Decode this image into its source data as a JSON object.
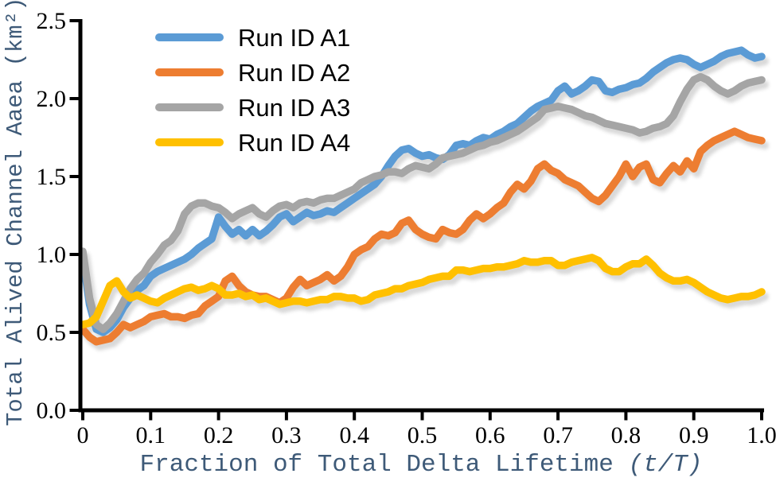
{
  "figure": {
    "background": "#ffffff",
    "axis_color": "#000000",
    "tick_label_color": "#000000",
    "axis_title_color": "#3E5A78",
    "shadow": true
  },
  "chart_data": {
    "type": "line",
    "title": "",
    "xlabel": "Fraction of Total Delta Lifetime (t/T)",
    "xlabel_main": "Fraction of Total Delta Lifetime ",
    "xlabel_var": "(t/T)",
    "ylabel": "Total Alived Channel Aaea (km²)",
    "ylabel_main": "Total Alived Channel Aaea ",
    "ylabel_unit": "(km²)",
    "xlim": [
      0,
      1.0
    ],
    "ylim": [
      0,
      2.5
    ],
    "x_ticks": [
      "0",
      "0.1",
      "0.2",
      "0.3",
      "0.4",
      "0.5",
      "0.6",
      "0.7",
      "0.8",
      "0.9",
      "1.0"
    ],
    "y_ticks": [
      "0.0",
      "0.5",
      "1.0",
      "1.5",
      "2.0",
      "2.5"
    ],
    "grid": false,
    "legend_position": "top-left-inside",
    "x_start": 0,
    "x_step": 0.01,
    "series": [
      {
        "name": "Run ID A1",
        "color": "#5B9BD5",
        "values": [
          0.98,
          0.68,
          0.52,
          0.5,
          0.53,
          0.58,
          0.66,
          0.72,
          0.77,
          0.8,
          0.86,
          0.89,
          0.91,
          0.93,
          0.95,
          0.97,
          1.0,
          1.04,
          1.07,
          1.1,
          1.24,
          1.18,
          1.13,
          1.16,
          1.12,
          1.16,
          1.12,
          1.15,
          1.19,
          1.24,
          1.26,
          1.21,
          1.24,
          1.27,
          1.25,
          1.26,
          1.28,
          1.27,
          1.3,
          1.33,
          1.36,
          1.39,
          1.42,
          1.45,
          1.5,
          1.57,
          1.63,
          1.67,
          1.68,
          1.65,
          1.63,
          1.64,
          1.62,
          1.61,
          1.64,
          1.7,
          1.71,
          1.7,
          1.73,
          1.75,
          1.74,
          1.77,
          1.79,
          1.82,
          1.84,
          1.88,
          1.92,
          1.95,
          1.97,
          1.99,
          2.05,
          2.08,
          2.03,
          2.05,
          2.08,
          2.12,
          2.11,
          2.05,
          2.04,
          2.06,
          2.07,
          2.09,
          2.1,
          2.13,
          2.17,
          2.2,
          2.23,
          2.25,
          2.26,
          2.25,
          2.22,
          2.2,
          2.22,
          2.24,
          2.27,
          2.29,
          2.3,
          2.31,
          2.28,
          2.26,
          2.27
        ]
      },
      {
        "name": "Run ID A2",
        "color": "#ED7D31",
        "values": [
          0.52,
          0.47,
          0.44,
          0.45,
          0.46,
          0.5,
          0.55,
          0.53,
          0.55,
          0.57,
          0.6,
          0.61,
          0.62,
          0.6,
          0.6,
          0.59,
          0.61,
          0.62,
          0.67,
          0.7,
          0.73,
          0.83,
          0.86,
          0.8,
          0.76,
          0.74,
          0.73,
          0.73,
          0.71,
          0.69,
          0.72,
          0.79,
          0.84,
          0.8,
          0.82,
          0.84,
          0.87,
          0.83,
          0.86,
          0.92,
          1.0,
          1.03,
          1.05,
          1.1,
          1.13,
          1.12,
          1.14,
          1.2,
          1.22,
          1.16,
          1.13,
          1.11,
          1.1,
          1.16,
          1.14,
          1.13,
          1.16,
          1.22,
          1.26,
          1.23,
          1.26,
          1.3,
          1.33,
          1.4,
          1.45,
          1.42,
          1.47,
          1.55,
          1.58,
          1.54,
          1.52,
          1.48,
          1.46,
          1.44,
          1.4,
          1.36,
          1.34,
          1.38,
          1.44,
          1.5,
          1.58,
          1.5,
          1.56,
          1.58,
          1.48,
          1.46,
          1.52,
          1.57,
          1.53,
          1.6,
          1.55,
          1.66,
          1.7,
          1.73,
          1.75,
          1.77,
          1.79,
          1.77,
          1.75,
          1.74,
          1.73
        ]
      },
      {
        "name": "Run ID A3",
        "color": "#A5A5A5",
        "values": [
          1.02,
          0.72,
          0.55,
          0.52,
          0.56,
          0.62,
          0.7,
          0.78,
          0.84,
          0.88,
          0.95,
          1.0,
          1.06,
          1.09,
          1.15,
          1.26,
          1.31,
          1.33,
          1.33,
          1.31,
          1.3,
          1.27,
          1.23,
          1.26,
          1.28,
          1.3,
          1.26,
          1.24,
          1.28,
          1.31,
          1.32,
          1.3,
          1.33,
          1.34,
          1.33,
          1.35,
          1.36,
          1.36,
          1.38,
          1.4,
          1.42,
          1.46,
          1.48,
          1.5,
          1.51,
          1.53,
          1.53,
          1.52,
          1.55,
          1.57,
          1.56,
          1.55,
          1.58,
          1.62,
          1.63,
          1.64,
          1.65,
          1.67,
          1.69,
          1.7,
          1.72,
          1.73,
          1.75,
          1.77,
          1.79,
          1.82,
          1.85,
          1.88,
          1.93,
          1.94,
          1.95,
          1.94,
          1.93,
          1.91,
          1.89,
          1.88,
          1.86,
          1.84,
          1.83,
          1.82,
          1.81,
          1.8,
          1.78,
          1.79,
          1.81,
          1.82,
          1.84,
          1.89,
          1.98,
          2.06,
          2.12,
          2.14,
          2.12,
          2.08,
          2.05,
          2.03,
          2.05,
          2.08,
          2.1,
          2.11,
          2.12
        ]
      },
      {
        "name": "Run ID A4",
        "color": "#FFC000",
        "values": [
          0.55,
          0.56,
          0.6,
          0.7,
          0.8,
          0.83,
          0.76,
          0.72,
          0.74,
          0.72,
          0.7,
          0.69,
          0.72,
          0.74,
          0.76,
          0.78,
          0.79,
          0.77,
          0.78,
          0.8,
          0.78,
          0.74,
          0.74,
          0.75,
          0.73,
          0.74,
          0.71,
          0.72,
          0.7,
          0.68,
          0.69,
          0.7,
          0.7,
          0.69,
          0.7,
          0.71,
          0.71,
          0.73,
          0.73,
          0.72,
          0.72,
          0.7,
          0.71,
          0.74,
          0.75,
          0.76,
          0.78,
          0.78,
          0.8,
          0.81,
          0.82,
          0.84,
          0.85,
          0.86,
          0.86,
          0.9,
          0.9,
          0.89,
          0.9,
          0.91,
          0.91,
          0.92,
          0.92,
          0.93,
          0.94,
          0.96,
          0.95,
          0.95,
          0.96,
          0.96,
          0.93,
          0.93,
          0.95,
          0.96,
          0.97,
          0.98,
          0.96,
          0.91,
          0.89,
          0.89,
          0.92,
          0.94,
          0.94,
          0.97,
          0.93,
          0.88,
          0.85,
          0.83,
          0.83,
          0.84,
          0.82,
          0.79,
          0.76,
          0.74,
          0.72,
          0.71,
          0.72,
          0.73,
          0.73,
          0.74,
          0.76
        ]
      }
    ]
  }
}
